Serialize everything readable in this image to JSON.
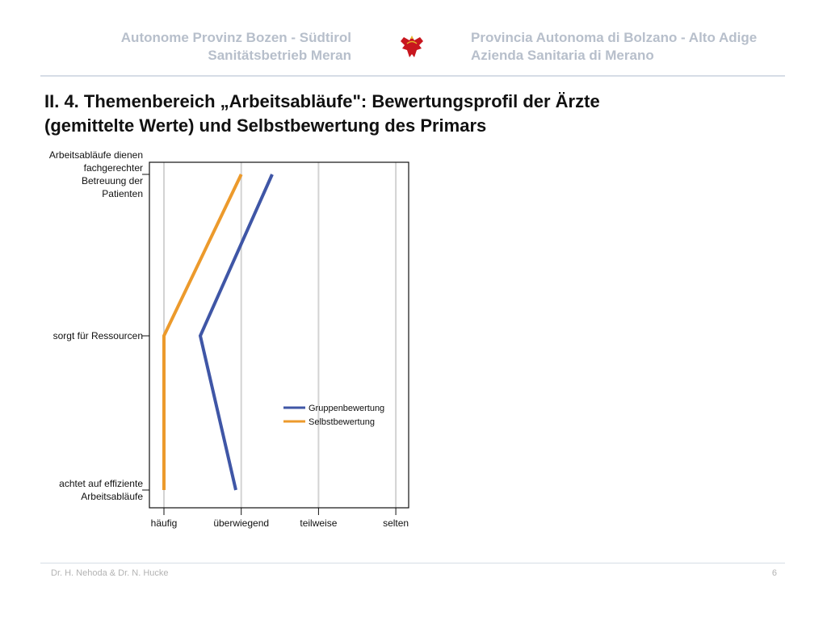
{
  "header": {
    "left_line1": "Autonome Provinz Bozen -  Südtirol",
    "left_line2": "Sanitätsbetrieb Meran",
    "right_line1": "Provincia Autonoma di Bolzano - Alto Adige",
    "right_line2": "Azienda Sanitaria di Merano",
    "logo_icon": "eagle-coat-of-arms"
  },
  "slide": {
    "title_line1": "II. 4. Themenbereich „Arbeitsabläufe\": Bewertungsprofil der Ärzte",
    "title_line2": "(gemittelte Werte) und Selbstbewertung des Primars"
  },
  "footer": {
    "author": "Dr. H. Nehoda & Dr. N. Hucke",
    "page_number": "6"
  },
  "chart_data": {
    "type": "line",
    "orientation": "horizontal-profile",
    "x_scale": [
      "häufig",
      "überwiegend",
      "teilweise",
      "selten"
    ],
    "xlim": [
      1,
      4
    ],
    "grid": true,
    "legend_position": "lower-right inside plot",
    "categories": [
      [
        "Arbeitsabläufe dienen",
        "fachgerechter",
        "Betreuung der",
        "Patienten"
      ],
      [
        "sorgt für Ressourcen"
      ],
      [
        "achtet auf effiziente",
        "Arbeitsabläufe"
      ]
    ],
    "series": [
      {
        "name": "Gruppenbewertung",
        "color": "#3f56a6",
        "values": [
          2.4,
          1.47,
          1.93
        ]
      },
      {
        "name": "Selbstbewertung",
        "color": "#ec9a2c",
        "values": [
          2.0,
          1.0,
          1.0
        ]
      }
    ]
  }
}
